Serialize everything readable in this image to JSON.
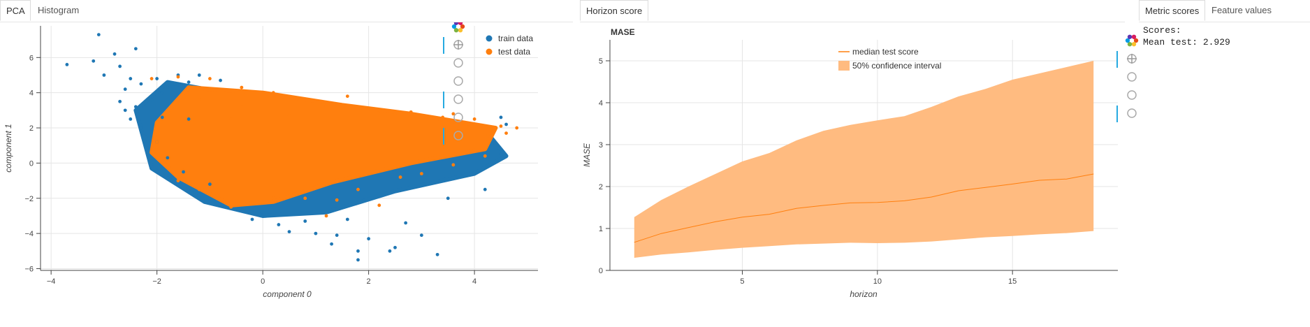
{
  "panels": {
    "left_tabs": [
      "PCA",
      "Histogram"
    ],
    "middle_tabs": [
      "Horizon score"
    ],
    "right_tabs": [
      "Metric scores",
      "Feature values"
    ]
  },
  "scores": {
    "heading": "Scores:",
    "mean_line": "Mean test: 2.929"
  },
  "toolbar_icons": [
    "bokeh-logo-icon",
    "pan-icon",
    "box-zoom-icon",
    "wheel-zoom-icon",
    "zoom-in-icon",
    "reset-icon",
    "hover-icon"
  ],
  "colors": {
    "train": "#1f77b4",
    "test": "#ff7f0e",
    "band": "#ffbb80",
    "median": "#ff7f0e"
  },
  "chart_data": [
    {
      "type": "scatter",
      "title": "",
      "xlabel": "component 0",
      "ylabel": "component 1",
      "xlim": [
        -4.2,
        5.2
      ],
      "ylim": [
        -6.1,
        7.8
      ],
      "xticks": [
        -4,
        -2,
        0,
        2,
        4
      ],
      "yticks": [
        -6,
        -4,
        -2,
        0,
        2,
        4,
        6
      ],
      "legend_position": "top-right",
      "series": [
        {
          "name": "train data",
          "color": "#1f77b4",
          "points": [
            [
              -3.7,
              5.6
            ],
            [
              -3.1,
              7.3
            ],
            [
              -3.2,
              5.8
            ],
            [
              -2.8,
              6.2
            ],
            [
              -2.4,
              6.5
            ],
            [
              -2.7,
              5.5
            ],
            [
              -3.0,
              5.0
            ],
            [
              -2.5,
              4.8
            ],
            [
              -2.6,
              4.2
            ],
            [
              -2.7,
              3.5
            ],
            [
              -2.4,
              3.2
            ],
            [
              -2.5,
              2.5
            ],
            [
              -2.3,
              2.0
            ],
            [
              -2.0,
              1.2
            ],
            [
              -1.8,
              0.3
            ],
            [
              -1.5,
              -0.5
            ],
            [
              -1.0,
              -1.2
            ],
            [
              0.0,
              -3.0
            ],
            [
              -0.2,
              -3.2
            ],
            [
              0.3,
              -3.5
            ],
            [
              0.5,
              -3.9
            ],
            [
              1.0,
              -4.0
            ],
            [
              1.3,
              -4.6
            ],
            [
              1.8,
              -5.0
            ],
            [
              1.8,
              -5.5
            ],
            [
              2.5,
              -4.8
            ],
            [
              2.4,
              -5.0
            ],
            [
              3.0,
              -4.1
            ],
            [
              3.3,
              -5.2
            ],
            [
              2.0,
              -4.3
            ],
            [
              1.6,
              -3.2
            ],
            [
              2.7,
              -3.4
            ],
            [
              3.5,
              -2.0
            ],
            [
              4.2,
              -1.5
            ],
            [
              4.5,
              0.5
            ],
            [
              4.6,
              2.2
            ],
            [
              4.5,
              2.6
            ],
            [
              1.4,
              -4.1
            ],
            [
              0.8,
              -3.3
            ],
            [
              -1.6,
              5.0
            ],
            [
              -2.0,
              4.8
            ],
            [
              -1.4,
              4.6
            ],
            [
              -0.8,
              4.7
            ],
            [
              -1.2,
              5.0
            ],
            [
              -1.8,
              4.3
            ],
            [
              -1.9,
              4.0
            ],
            [
              -2.3,
              4.5
            ],
            [
              -2.1,
              3.6
            ],
            [
              -2.6,
              3.0
            ],
            [
              -1.9,
              2.6
            ],
            [
              -2.2,
              1.5
            ],
            [
              -1.4,
              2.5
            ]
          ]
        },
        {
          "name": "test data",
          "color": "#ff7f0e",
          "points": [
            [
              -2.1,
              4.8
            ],
            [
              -1.6,
              4.9
            ],
            [
              -1.0,
              4.8
            ],
            [
              -0.4,
              4.3
            ],
            [
              0.2,
              4.0
            ],
            [
              0.6,
              3.6
            ],
            [
              1.2,
              3.2
            ],
            [
              1.6,
              3.8
            ],
            [
              2.2,
              3.0
            ],
            [
              2.8,
              2.9
            ],
            [
              3.4,
              2.6
            ],
            [
              3.6,
              2.8
            ],
            [
              4.0,
              2.5
            ],
            [
              4.5,
              2.1
            ],
            [
              4.8,
              2.0
            ],
            [
              4.6,
              1.7
            ],
            [
              4.2,
              1.6
            ],
            [
              -2.0,
              1.2
            ],
            [
              -1.6,
              -1.0
            ],
            [
              -1.2,
              -1.5
            ],
            [
              -0.6,
              -2.5
            ],
            [
              0.2,
              -2.0
            ],
            [
              0.8,
              -2.0
            ],
            [
              1.4,
              -2.1
            ],
            [
              1.8,
              -1.5
            ],
            [
              2.2,
              -2.4
            ],
            [
              1.2,
              -3.0
            ],
            [
              2.6,
              -0.8
            ],
            [
              3.0,
              -0.6
            ],
            [
              3.6,
              -0.1
            ],
            [
              4.2,
              0.4
            ],
            [
              0.1,
              1.1
            ],
            [
              -0.6,
              2.5
            ],
            [
              -1.2,
              3.6
            ],
            [
              -0.4,
              3.2
            ],
            [
              0.5,
              2.7
            ]
          ]
        }
      ]
    },
    {
      "type": "area",
      "title": "MASE",
      "xlabel": "horizon",
      "ylabel": "MASE",
      "xlim": [
        0.1,
        18.9
      ],
      "ylim": [
        0,
        5.5
      ],
      "xticks": [
        5,
        10,
        15
      ],
      "yticks": [
        0,
        1,
        2,
        3,
        4,
        5
      ],
      "legend_position": "top-right",
      "x": [
        1,
        2,
        3,
        4,
        5,
        6,
        7,
        8,
        9,
        10,
        11,
        12,
        13,
        14,
        15,
        16,
        17,
        18
      ],
      "series": [
        {
          "name": "median test score",
          "type": "line",
          "color": "#ff7f0e",
          "values": [
            0.67,
            0.88,
            1.02,
            1.16,
            1.27,
            1.34,
            1.48,
            1.55,
            1.61,
            1.62,
            1.66,
            1.75,
            1.9,
            1.98,
            2.06,
            2.15,
            2.18,
            2.3
          ]
        },
        {
          "name": "50% confidence interval",
          "type": "band",
          "color": "#ffbb80",
          "lower": [
            0.3,
            0.38,
            0.43,
            0.49,
            0.54,
            0.58,
            0.62,
            0.64,
            0.66,
            0.65,
            0.66,
            0.69,
            0.74,
            0.79,
            0.82,
            0.86,
            0.89,
            0.94
          ],
          "upper": [
            1.27,
            1.68,
            2.0,
            2.3,
            2.6,
            2.8,
            3.1,
            3.33,
            3.47,
            3.58,
            3.68,
            3.9,
            4.15,
            4.33,
            4.55,
            4.7,
            4.85,
            5.0
          ]
        }
      ]
    }
  ]
}
